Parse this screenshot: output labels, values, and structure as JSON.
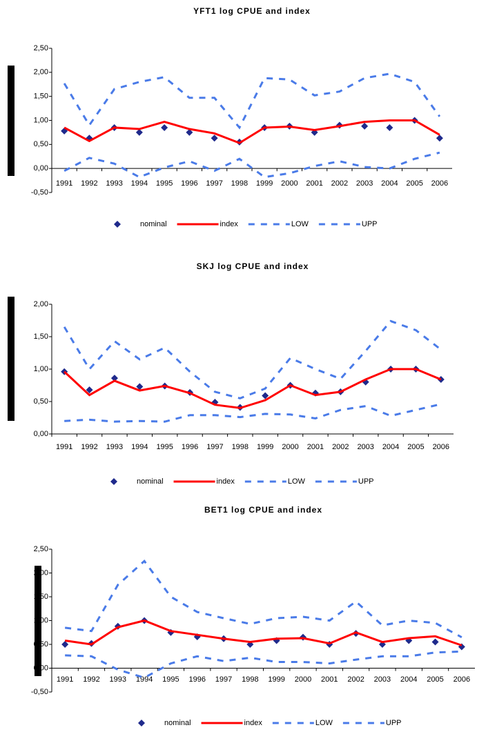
{
  "chart_data": [
    {
      "type": "line",
      "title": "YFT1 log CPUE and index",
      "categories": [
        "1991",
        "1992",
        "1993",
        "1994",
        "1995",
        "1996",
        "1997",
        "1998",
        "1999",
        "2000",
        "2001",
        "2002",
        "2003",
        "2004",
        "2005",
        "2006"
      ],
      "series": [
        {
          "name": "nominal",
          "color": "#1f2a8c",
          "style": "markers",
          "values": [
            0.78,
            0.63,
            0.85,
            0.75,
            0.85,
            0.75,
            0.63,
            0.55,
            0.85,
            0.88,
            0.75,
            0.9,
            0.88,
            0.85,
            1.0,
            0.63
          ]
        },
        {
          "name": "index",
          "color": "#ff0000",
          "style": "solid",
          "values": [
            0.85,
            0.57,
            0.85,
            0.82,
            0.97,
            0.82,
            0.73,
            0.53,
            0.85,
            0.87,
            0.8,
            0.88,
            0.97,
            1.0,
            1.0,
            0.7
          ]
        },
        {
          "name": "LOW",
          "color": "#4a7be8",
          "style": "dashed",
          "values": [
            -0.05,
            0.22,
            0.1,
            -0.18,
            0.02,
            0.15,
            -0.05,
            0.2,
            -0.18,
            -0.1,
            0.05,
            0.15,
            0.03,
            0.0,
            0.2,
            0.33
          ]
        },
        {
          "name": "UPP",
          "color": "#4a7be8",
          "style": "dashed",
          "values": [
            1.77,
            0.9,
            1.65,
            1.8,
            1.9,
            1.47,
            1.47,
            0.85,
            1.88,
            1.85,
            1.52,
            1.6,
            1.88,
            1.97,
            1.8,
            1.08
          ]
        }
      ],
      "ylim": [
        -0.5,
        2.5
      ],
      "yticks": [
        {
          "value": -0.5,
          "label": "-0,50"
        },
        {
          "value": 0,
          "label": "0,00"
        },
        {
          "value": 0.5,
          "label": "0,50"
        },
        {
          "value": 1,
          "label": "1,00"
        },
        {
          "value": 1.5,
          "label": "1,50"
        },
        {
          "value": 2,
          "label": "2,00"
        },
        {
          "value": 2.5,
          "label": "2,50"
        }
      ],
      "legend": "bottom"
    },
    {
      "type": "line",
      "title": "SKJ log CPUE and index",
      "categories": [
        "1991",
        "1992",
        "1993",
        "1994",
        "1995",
        "1996",
        "1997",
        "1998",
        "1999",
        "2000",
        "2001",
        "2002",
        "2003",
        "2004",
        "2005",
        "2006"
      ],
      "series": [
        {
          "name": "nominal",
          "color": "#1f2a8c",
          "style": "markers",
          "values": [
            0.96,
            0.68,
            0.86,
            0.73,
            0.74,
            0.64,
            0.49,
            0.41,
            0.59,
            0.75,
            0.63,
            0.65,
            0.8,
            1.0,
            1.0,
            0.84
          ]
        },
        {
          "name": "index",
          "color": "#ff0000",
          "style": "solid",
          "values": [
            0.96,
            0.6,
            0.82,
            0.67,
            0.74,
            0.63,
            0.45,
            0.4,
            0.52,
            0.75,
            0.6,
            0.65,
            0.84,
            1.0,
            1.0,
            0.84
          ]
        },
        {
          "name": "LOW",
          "color": "#4a7be8",
          "style": "dashed",
          "values": [
            0.2,
            0.22,
            0.19,
            0.2,
            0.19,
            0.29,
            0.29,
            0.26,
            0.31,
            0.3,
            0.24,
            0.37,
            0.43,
            0.28,
            0.37,
            0.46
          ]
        },
        {
          "name": "UPP",
          "color": "#4a7be8",
          "style": "dashed",
          "values": [
            1.65,
            1.0,
            1.43,
            1.15,
            1.33,
            0.96,
            0.65,
            0.55,
            0.7,
            1.17,
            1.0,
            0.85,
            1.28,
            1.74,
            1.6,
            1.3
          ]
        }
      ],
      "ylim": [
        0,
        2
      ],
      "yticks": [
        {
          "value": 0,
          "label": "0,00"
        },
        {
          "value": 0.5,
          "label": "0,50"
        },
        {
          "value": 1,
          "label": "1,00"
        },
        {
          "value": 1.5,
          "label": "1,50"
        },
        {
          "value": 2,
          "label": "2,00"
        }
      ],
      "legend": "bottom"
    },
    {
      "type": "line",
      "title": "BET1 log CPUE and index",
      "categories": [
        "1991",
        "1992",
        "1993",
        "1994",
        "1995",
        "1996",
        "1997",
        "1998",
        "1999",
        "2000",
        "2001",
        "2002",
        "2003",
        "2004",
        "2005",
        "2006"
      ],
      "series": [
        {
          "name": "nominal",
          "color": "#1f2a8c",
          "style": "markers",
          "values": [
            0.5,
            0.52,
            0.88,
            1.0,
            0.75,
            0.66,
            0.62,
            0.5,
            0.58,
            0.65,
            0.5,
            0.73,
            0.5,
            0.58,
            0.55,
            0.45
          ]
        },
        {
          "name": "index",
          "color": "#ff0000",
          "style": "solid",
          "values": [
            0.58,
            0.5,
            0.86,
            1.0,
            0.78,
            0.7,
            0.62,
            0.55,
            0.62,
            0.63,
            0.52,
            0.75,
            0.55,
            0.63,
            0.67,
            0.48
          ]
        },
        {
          "name": "LOW",
          "color": "#4a7be8",
          "style": "dashed",
          "values": [
            0.27,
            0.25,
            -0.03,
            -0.2,
            0.1,
            0.25,
            0.15,
            0.22,
            0.13,
            0.13,
            0.1,
            0.18,
            0.25,
            0.25,
            0.33,
            0.35
          ]
        },
        {
          "name": "UPP",
          "color": "#4a7be8",
          "style": "dashed",
          "values": [
            0.85,
            0.78,
            1.75,
            2.25,
            1.5,
            1.18,
            1.05,
            0.93,
            1.05,
            1.08,
            1.0,
            1.4,
            0.9,
            1.0,
            0.95,
            0.65
          ]
        }
      ],
      "ylim": [
        -0.5,
        2.5
      ],
      "yticks": [
        {
          "value": -0.5,
          "label": "-0,50"
        },
        {
          "value": 0,
          "label": "0,00"
        },
        {
          "value": 0.5,
          "label": "0,50"
        },
        {
          "value": 1,
          "label": "1,00"
        },
        {
          "value": 1.5,
          "label": "1,50"
        },
        {
          "value": 2,
          "label": "2,00"
        },
        {
          "value": 2.5,
          "label": "2,50"
        }
      ],
      "legend": "bottom"
    }
  ]
}
